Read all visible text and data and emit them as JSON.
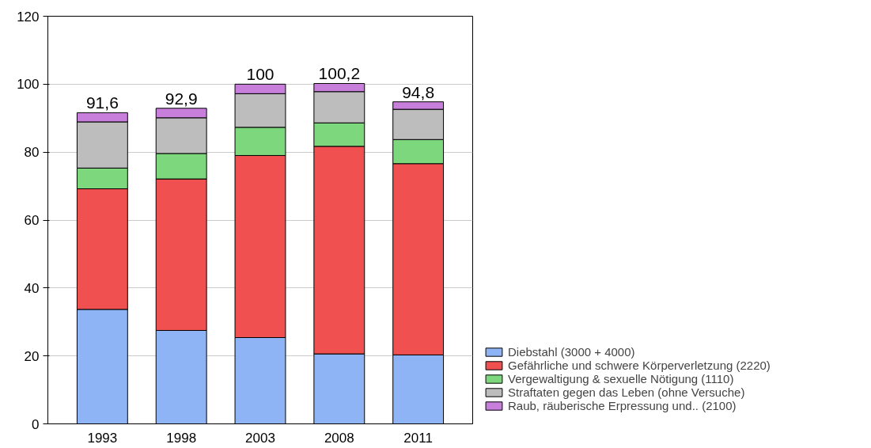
{
  "chart_data": {
    "type": "bar",
    "stacked": true,
    "categories": [
      "1993",
      "1998",
      "2003",
      "2008",
      "2011"
    ],
    "series": [
      {
        "name": "Diebstahl (3000 + 4000)",
        "color": "#8fb4f5",
        "values": [
          33.7,
          27.5,
          25.4,
          20.6,
          20.3
        ]
      },
      {
        "name": "Gefährliche und schwere Körperverletzung (2220)",
        "color": "#f05050",
        "values": [
          35.5,
          44.6,
          53.6,
          61.1,
          56.3
        ]
      },
      {
        "name": "Vergewaltigung & sexuelle Nötigung (1110)",
        "color": "#7dd87d",
        "values": [
          6.1,
          7.5,
          8.3,
          6.9,
          7.1
        ]
      },
      {
        "name": "Straftaten gegen das Leben (ohne Versuche)",
        "color": "#bdbdbd",
        "values": [
          13.6,
          10.5,
          9.9,
          9.2,
          8.9
        ]
      },
      {
        "name": "Raub, räuberische Erpressung und.. (2100)",
        "color": "#c77fdb",
        "values": [
          2.7,
          2.8,
          2.8,
          2.4,
          2.2
        ]
      }
    ],
    "totals": [
      "91,6",
      "92,9",
      "100",
      "100,2",
      "94,8"
    ],
    "ylim": [
      0,
      120
    ],
    "yticks": [
      0,
      20,
      40,
      60,
      80,
      100,
      120
    ],
    "grid": "y",
    "legend": "bottom right"
  }
}
